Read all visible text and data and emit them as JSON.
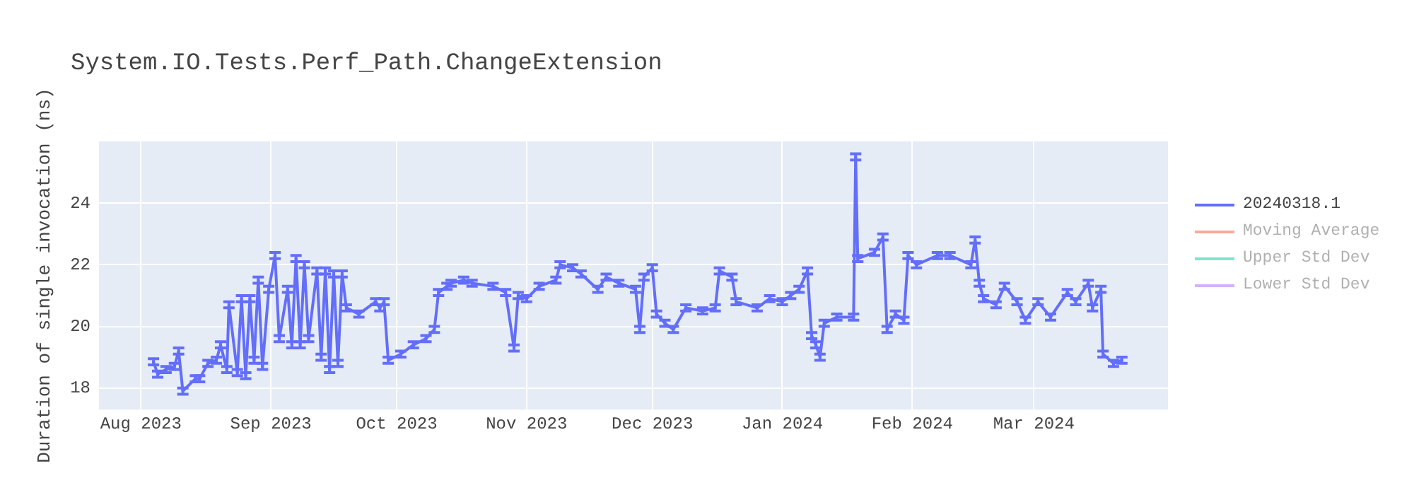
{
  "chart_data": {
    "type": "line",
    "title": "System.IO.Tests.Perf_Path.ChangeExtension",
    "ylabel": "Duration of single invocation (ns)",
    "x": [
      "2023-08-04",
      "2023-08-05",
      "2023-08-07",
      "2023-08-09",
      "2023-08-10",
      "2023-08-11",
      "2023-08-14",
      "2023-08-15",
      "2023-08-17",
      "2023-08-19",
      "2023-08-20",
      "2023-08-21T12:00",
      "2023-08-22",
      "2023-08-24",
      "2023-08-25",
      "2023-08-26",
      "2023-08-27",
      "2023-08-28",
      "2023-08-29",
      "2023-08-30",
      "2023-08-31T12:00",
      "2023-09-02",
      "2023-09-03",
      "2023-09-05",
      "2023-09-06",
      "2023-09-07",
      "2023-09-08",
      "2023-09-09",
      "2023-09-10",
      "2023-09-12",
      "2023-09-13",
      "2023-09-14",
      "2023-09-15",
      "2023-09-16",
      "2023-09-17",
      "2023-09-18",
      "2023-09-19",
      "2023-09-22",
      "2023-09-26",
      "2023-09-27",
      "2023-09-28",
      "2023-09-29",
      "2023-10-02",
      "2023-10-05",
      "2023-10-08",
      "2023-10-10",
      "2023-10-11",
      "2023-10-13",
      "2023-10-14",
      "2023-10-17",
      "2023-10-19",
      "2023-10-24",
      "2023-10-27",
      "2023-10-29",
      "2023-10-30",
      "2023-11-01",
      "2023-11-04",
      "2023-11-08",
      "2023-11-09",
      "2023-11-12",
      "2023-11-14",
      "2023-11-18",
      "2023-11-20",
      "2023-11-23",
      "2023-11-27",
      "2023-11-28",
      "2023-11-29",
      "2023-12-01",
      "2023-12-02",
      "2023-12-04",
      "2023-12-06",
      "2023-12-09",
      "2023-12-13",
      "2023-12-16",
      "2023-12-17",
      "2023-12-20",
      "2023-12-21",
      "2023-12-26",
      "2023-12-29",
      "2024-01-01",
      "2024-01-03",
      "2024-01-05",
      "2024-01-07",
      "2024-01-08",
      "2024-01-09",
      "2024-01-10",
      "2024-01-11",
      "2024-01-14",
      "2024-01-18",
      "2024-01-18T12:00",
      "2024-01-19",
      "2024-01-23",
      "2024-01-25",
      "2024-01-26",
      "2024-01-28",
      "2024-01-30",
      "2024-01-31",
      "2024-02-02",
      "2024-02-07",
      "2024-02-10",
      "2024-02-15",
      "2024-02-16",
      "2024-02-17",
      "2024-02-18",
      "2024-02-21",
      "2024-02-23",
      "2024-02-26",
      "2024-02-28",
      "2024-03-02",
      "2024-03-05",
      "2024-03-09",
      "2024-03-11",
      "2024-03-14",
      "2024-03-15",
      "2024-03-17",
      "2024-03-17T12:00",
      "2024-03-20",
      "2024-03-22"
    ],
    "series": [
      {
        "name": "20240318.1",
        "color": "#636efa",
        "values": [
          18.85,
          18.45,
          18.6,
          18.7,
          19.2,
          17.9,
          18.3,
          18.3,
          18.8,
          18.9,
          19.4,
          18.6,
          20.7,
          18.5,
          20.9,
          18.4,
          20.9,
          18.9,
          21.5,
          18.7,
          21.2,
          22.3,
          19.6,
          21.2,
          19.4,
          22.2,
          19.4,
          22.0,
          19.6,
          21.8,
          19.0,
          21.8,
          18.6,
          21.7,
          18.8,
          21.7,
          20.6,
          20.4,
          20.8,
          20.6,
          20.8,
          18.9,
          19.1,
          19.4,
          19.6,
          19.9,
          21.1,
          21.3,
          21.4,
          21.5,
          21.4,
          21.3,
          21.1,
          19.3,
          21.0,
          20.9,
          21.3,
          21.5,
          22.0,
          21.9,
          21.7,
          21.2,
          21.6,
          21.4,
          21.2,
          19.9,
          21.6,
          21.9,
          20.4,
          20.1,
          19.9,
          20.6,
          20.5,
          20.6,
          21.8,
          21.6,
          20.8,
          20.6,
          20.9,
          20.8,
          21.0,
          21.2,
          21.8,
          19.7,
          19.4,
          19.0,
          20.1,
          20.3,
          20.3,
          25.5,
          22.2,
          22.4,
          22.9,
          19.9,
          20.4,
          20.2,
          22.3,
          22.0,
          22.3,
          22.3,
          22.0,
          22.8,
          21.4,
          20.9,
          20.7,
          21.3,
          20.8,
          20.2,
          20.8,
          20.3,
          21.1,
          20.8,
          21.4,
          20.6,
          21.2,
          19.1,
          18.8,
          18.9
        ],
        "errors": [
          0.1,
          0.1,
          0.1,
          0.1,
          0.1,
          0.1,
          0.1,
          0.1,
          0.1,
          0.1,
          0.1,
          0.1,
          0.1,
          0.1,
          0.1,
          0.1,
          0.1,
          0.1,
          0.1,
          0.1,
          0.1,
          0.1,
          0.1,
          0.1,
          0.1,
          0.1,
          0.1,
          0.1,
          0.1,
          0.1,
          0.1,
          0.1,
          0.1,
          0.1,
          0.1,
          0.1,
          0.1,
          0.1,
          0.1,
          0.1,
          0.1,
          0.1,
          0.1,
          0.1,
          0.1,
          0.1,
          0.1,
          0.1,
          0.1,
          0.1,
          0.1,
          0.1,
          0.1,
          0.1,
          0.1,
          0.1,
          0.1,
          0.1,
          0.1,
          0.1,
          0.1,
          0.1,
          0.1,
          0.1,
          0.1,
          0.1,
          0.1,
          0.1,
          0.1,
          0.1,
          0.1,
          0.1,
          0.1,
          0.1,
          0.1,
          0.1,
          0.1,
          0.1,
          0.1,
          0.1,
          0.1,
          0.1,
          0.1,
          0.1,
          0.1,
          0.1,
          0.1,
          0.1,
          0.1,
          0.1,
          0.1,
          0.1,
          0.1,
          0.1,
          0.1,
          0.1,
          0.1,
          0.1,
          0.1,
          0.1,
          0.1,
          0.1,
          0.1,
          0.1,
          0.1,
          0.1,
          0.1,
          0.1,
          0.1,
          0.1,
          0.1,
          0.1,
          0.1,
          0.1,
          0.1,
          0.1,
          0.1,
          0.1
        ]
      },
      {
        "name": "Moving Average",
        "color": "#f7aa9d",
        "values": [
          null,
          null,
          null,
          null,
          null,
          null,
          null,
          null,
          null,
          null,
          null,
          null,
          null,
          null,
          null,
          null,
          null,
          null,
          null,
          null,
          null,
          null,
          null,
          null,
          null,
          null,
          null,
          null,
          null,
          null,
          null,
          null,
          null,
          null,
          null,
          null,
          null,
          null,
          null,
          null,
          null,
          null,
          null,
          null,
          null,
          null,
          null,
          null,
          null,
          null,
          null,
          null,
          null,
          null,
          null,
          null,
          null,
          null,
          null,
          null,
          null,
          null,
          null,
          null,
          null,
          null,
          null,
          null,
          null,
          null,
          null,
          null,
          null,
          null,
          null,
          null,
          null,
          null,
          null,
          null,
          null,
          null,
          null,
          null,
          null,
          null,
          null,
          null,
          null,
          null,
          null,
          null,
          null,
          null,
          null,
          null,
          null,
          null,
          null,
          null,
          null,
          null,
          null,
          null,
          null,
          null,
          null,
          null,
          null,
          null,
          null,
          null,
          null,
          null,
          null,
          null,
          null,
          null
        ]
      },
      {
        "name": "Upper Std Dev",
        "color": "#80e5ca",
        "values": [
          null,
          null,
          null,
          null,
          null,
          null,
          null,
          null,
          null,
          null,
          null,
          null,
          null,
          null,
          null,
          null,
          null,
          null,
          null,
          null,
          null,
          null,
          null,
          null,
          null,
          null,
          null,
          null,
          null,
          null,
          null,
          null,
          null,
          null,
          null,
          null,
          null,
          null,
          null,
          null,
          null,
          null,
          null,
          null,
          null,
          null,
          null,
          null,
          null,
          null,
          null,
          null,
          null,
          null,
          null,
          null,
          null,
          null,
          null,
          null,
          null,
          null,
          null,
          null,
          null,
          null,
          null,
          null,
          null,
          null,
          null,
          null,
          null,
          null,
          null,
          null,
          null,
          null,
          null,
          null,
          null,
          null,
          null,
          null,
          null,
          null,
          null,
          null,
          null,
          null,
          null,
          null,
          null,
          null,
          null,
          null,
          null,
          null,
          null,
          null,
          null,
          null,
          null,
          null,
          null,
          null,
          null,
          null,
          null,
          null,
          null,
          null,
          null,
          null,
          null,
          null,
          null,
          null
        ]
      },
      {
        "name": "Lower Std Dev",
        "color": "#d5b1fc",
        "values": [
          null,
          null,
          null,
          null,
          null,
          null,
          null,
          null,
          null,
          null,
          null,
          null,
          null,
          null,
          null,
          null,
          null,
          null,
          null,
          null,
          null,
          null,
          null,
          null,
          null,
          null,
          null,
          null,
          null,
          null,
          null,
          null,
          null,
          null,
          null,
          null,
          null,
          null,
          null,
          null,
          null,
          null,
          null,
          null,
          null,
          null,
          null,
          null,
          null,
          null,
          null,
          null,
          null,
          null,
          null,
          null,
          null,
          null,
          null,
          null,
          null,
          null,
          null,
          null,
          null,
          null,
          null,
          null,
          null,
          null,
          null,
          null,
          null,
          null,
          null,
          null,
          null,
          null,
          null,
          null,
          null,
          null,
          null,
          null,
          null,
          null,
          null,
          null,
          null,
          null,
          null,
          null,
          null,
          null,
          null,
          null,
          null,
          null,
          null,
          null,
          null,
          null,
          null,
          null,
          null,
          null,
          null,
          null,
          null,
          null,
          null,
          null,
          null,
          null,
          null,
          null,
          null,
          null
        ]
      }
    ],
    "xlim": [
      "2023-07-22",
      "2024-04-02"
    ],
    "xticks": [
      {
        "value": "2023-08-01",
        "label": "Aug 2023"
      },
      {
        "value": "2023-09-01",
        "label": "Sep 2023"
      },
      {
        "value": "2023-10-01",
        "label": "Oct 2023"
      },
      {
        "value": "2023-11-01",
        "label": "Nov 2023"
      },
      {
        "value": "2023-12-01",
        "label": "Dec 2023"
      },
      {
        "value": "2024-01-01",
        "label": "Jan 2024"
      },
      {
        "value": "2024-02-01",
        "label": "Feb 2024"
      },
      {
        "value": "2024-03-01",
        "label": "Mar 2024"
      }
    ],
    "ylim": [
      17.3,
      26
    ],
    "yticks": [
      18,
      20,
      22,
      24
    ],
    "grid": true,
    "legend": "top right",
    "marker": "none",
    "line_style": "solid"
  }
}
